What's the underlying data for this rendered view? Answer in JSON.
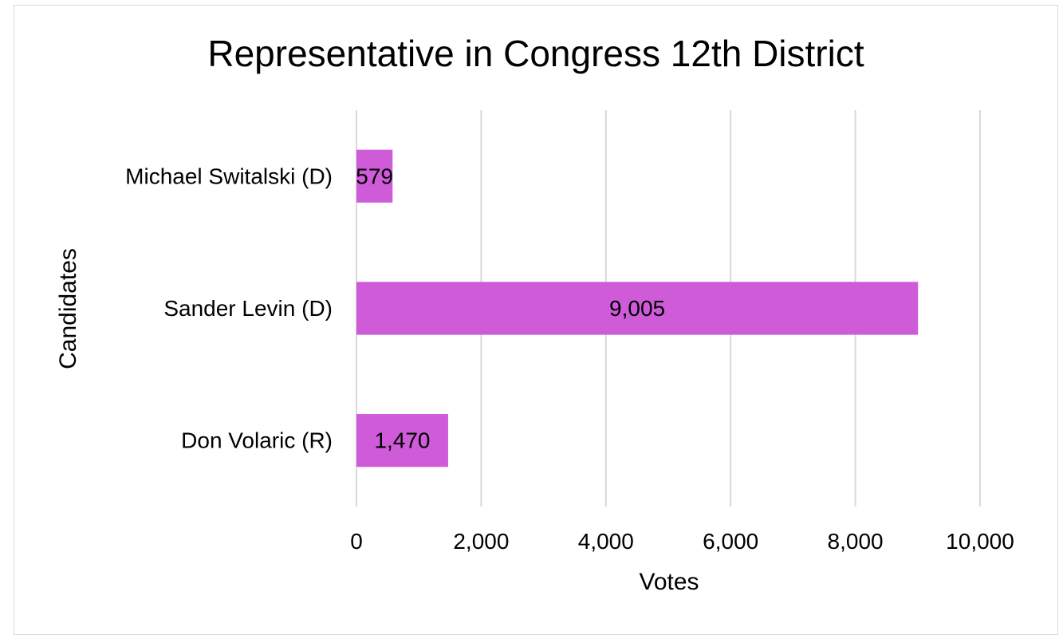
{
  "chart_data": {
    "type": "bar",
    "orientation": "horizontal",
    "title": "Representative in Congress 12th District",
    "xlabel": "Votes",
    "ylabel": "Candidates",
    "categories": [
      "Michael Switalski (D)",
      "Sander Levin (D)",
      "Don Volaric (R)"
    ],
    "values": [
      579,
      9005,
      1470
    ],
    "value_labels": [
      "579",
      "9,005",
      "1,470"
    ],
    "xlim": [
      0,
      10000
    ],
    "xticks": [
      0,
      2000,
      4000,
      6000,
      8000,
      10000
    ],
    "xtick_labels": [
      "0",
      "2,000",
      "4,000",
      "6,000",
      "8,000",
      "10,000"
    ],
    "grid": true,
    "legend": "none",
    "bar_color": "#cf5bd9"
  }
}
